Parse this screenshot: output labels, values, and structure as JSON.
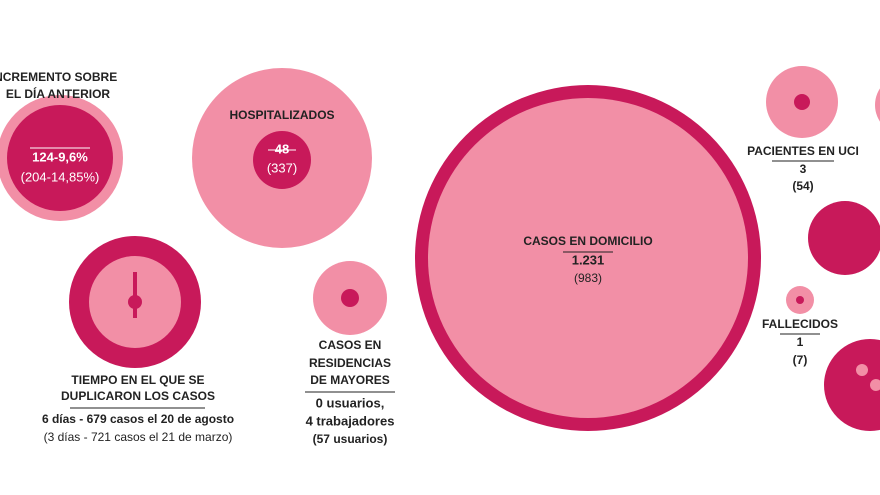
{
  "increment": {
    "label": [
      "INCREMENTO SOBRE",
      "EL DÍA ANTERIOR"
    ],
    "value": "124-9,6%",
    "previous": "(204-14,85%)"
  },
  "hospitalized": {
    "label": "HOSPITALIZADOS",
    "value": "48",
    "previous": "(337)"
  },
  "doubling_time": {
    "label": [
      "TIEMPO EN EL QUE SE",
      "DUPLICARON LOS CASOS"
    ],
    "value": "6 días - 679 casos el 20 de agosto",
    "previous": "(3 días - 721 casos el 21 de marzo)"
  },
  "nursing_homes": {
    "label": [
      "CASOS EN",
      "RESIDENCIAS",
      "DE MAYORES"
    ],
    "value": [
      "0 usuarios,",
      "4 trabajadores"
    ],
    "previous": "(57 usuarios)"
  },
  "home": {
    "label": "CASOS EN DOMICILIO",
    "value": "1.231",
    "previous": "(983)"
  },
  "icu": {
    "label": "PACIENTES EN UCI",
    "value": "3",
    "previous": "(54)"
  },
  "deceased": {
    "label": "FALLECIDOS",
    "value": "1",
    "previous": "(7)"
  }
}
